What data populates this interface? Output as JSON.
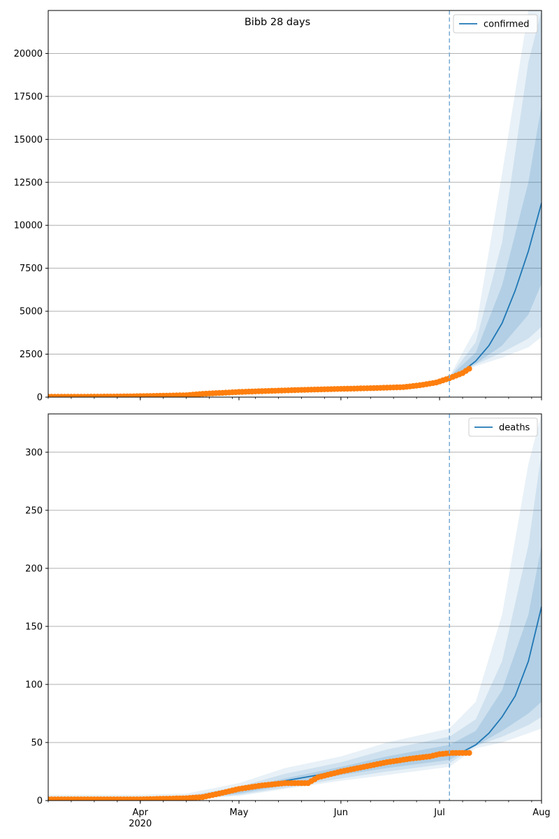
{
  "figure": {
    "title": "Bibb 28 days"
  },
  "colors": {
    "model": "#1f77b4",
    "observed": "#ff7f0e",
    "band": "#1f77b4",
    "vline": "#7fb0d8",
    "grid": "#b0b0b0"
  },
  "x_axis": {
    "ticks": [
      {
        "date": "2020-04-01",
        "label": "Apr",
        "sublabel": "2020"
      },
      {
        "date": "2020-05-01",
        "label": "May",
        "sublabel": ""
      },
      {
        "date": "2020-06-01",
        "label": "Jun",
        "sublabel": ""
      },
      {
        "date": "2020-07-01",
        "label": "Jul",
        "sublabel": ""
      },
      {
        "date": "2020-08-01",
        "label": "Aug",
        "sublabel": ""
      }
    ],
    "range": [
      "2020-03-04",
      "2020-08-01"
    ],
    "forecast_start": "2020-07-04"
  },
  "chart_data": [
    {
      "type": "line",
      "legend": "confirmed",
      "legend_position": "top-right",
      "grid": "y",
      "ylim": [
        0,
        22500
      ],
      "yticks": [
        0,
        2500,
        5000,
        7500,
        10000,
        12500,
        15000,
        17500,
        20000
      ],
      "median": {
        "x": [
          "2020-03-04",
          "2020-03-20",
          "2020-04-01",
          "2020-04-15",
          "2020-04-20",
          "2020-05-01",
          "2020-05-10",
          "2020-05-20",
          "2020-06-01",
          "2020-06-10",
          "2020-06-20",
          "2020-06-25",
          "2020-07-01",
          "2020-07-04",
          "2020-07-08",
          "2020-07-12",
          "2020-07-16",
          "2020-07-20",
          "2020-07-24",
          "2020-07-28",
          "2020-08-01"
        ],
        "y": [
          20,
          40,
          80,
          130,
          210,
          300,
          370,
          420,
          480,
          520,
          580,
          700,
          950,
          1150,
          1500,
          2100,
          3000,
          4300,
          6200,
          8500,
          11300
        ]
      },
      "bands": [
        {
          "x": [
            "2020-07-04",
            "2020-07-12",
            "2020-07-20",
            "2020-07-28",
            "2020-08-01"
          ],
          "lo": [
            1100,
            1800,
            2300,
            2900,
            3500
          ],
          "hi": [
            1200,
            4000,
            13000,
            22500,
            22500
          ]
        },
        {
          "x": [
            "2020-07-04",
            "2020-07-12",
            "2020-07-20",
            "2020-07-28",
            "2020-08-01"
          ],
          "lo": [
            1120,
            1900,
            2600,
            3400,
            4100
          ],
          "hi": [
            1180,
            3200,
            9000,
            19500,
            22500
          ]
        },
        {
          "x": [
            "2020-07-04",
            "2020-07-12",
            "2020-07-20",
            "2020-07-28",
            "2020-08-01"
          ],
          "lo": [
            1140,
            1950,
            3000,
            4800,
            6600
          ],
          "hi": [
            1170,
            2600,
            6500,
            12500,
            17000
          ]
        }
      ],
      "observed": {
        "x": [
          "2020-03-04",
          "2020-03-15",
          "2020-03-25",
          "2020-04-01",
          "2020-04-08",
          "2020-04-15",
          "2020-04-20",
          "2020-04-25",
          "2020-05-01",
          "2020-05-10",
          "2020-05-20",
          "2020-06-01",
          "2020-06-10",
          "2020-06-20",
          "2020-06-25",
          "2020-06-30",
          "2020-07-04",
          "2020-07-08",
          "2020-07-10"
        ],
        "y": [
          20,
          25,
          35,
          55,
          80,
          110,
          190,
          240,
          300,
          360,
          420,
          480,
          520,
          580,
          690,
          850,
          1100,
          1400,
          1650
        ]
      }
    },
    {
      "type": "line",
      "legend": "deaths",
      "legend_position": "top-right",
      "grid": "y",
      "ylim": [
        0,
        333
      ],
      "yticks": [
        0,
        50,
        100,
        150,
        200,
        250,
        300
      ],
      "median": {
        "x": [
          "2020-03-04",
          "2020-04-01",
          "2020-04-15",
          "2020-04-25",
          "2020-05-05",
          "2020-05-15",
          "2020-05-25",
          "2020-06-05",
          "2020-06-15",
          "2020-06-25",
          "2020-07-01",
          "2020-07-04",
          "2020-07-08",
          "2020-07-12",
          "2020-07-16",
          "2020-07-20",
          "2020-07-24",
          "2020-07-28",
          "2020-08-01"
        ],
        "y": [
          1,
          1,
          2,
          5,
          12,
          17,
          22,
          29,
          33,
          37,
          39,
          40,
          42,
          48,
          58,
          72,
          90,
          120,
          167
        ]
      },
      "bands": [
        {
          "x": [
            "2020-03-04",
            "2020-04-01",
            "2020-04-15",
            "2020-05-01",
            "2020-05-15",
            "2020-06-01",
            "2020-06-15",
            "2020-07-04",
            "2020-07-12",
            "2020-07-20",
            "2020-07-28",
            "2020-08-01"
          ],
          "lo": [
            0,
            0,
            1,
            4,
            10,
            17,
            22,
            29,
            45,
            50,
            58,
            62
          ],
          "hi": [
            5,
            5,
            6,
            15,
            28,
            38,
            50,
            62,
            85,
            160,
            290,
            333
          ]
        },
        {
          "x": [
            "2020-03-04",
            "2020-04-01",
            "2020-04-15",
            "2020-05-01",
            "2020-05-15",
            "2020-06-01",
            "2020-06-15",
            "2020-07-04",
            "2020-07-12",
            "2020-07-20",
            "2020-07-28",
            "2020-08-01"
          ],
          "lo": [
            0,
            0,
            1,
            5,
            11,
            19,
            25,
            32,
            47,
            55,
            65,
            72
          ],
          "hi": [
            3,
            3,
            4,
            12,
            23,
            33,
            44,
            55,
            70,
            120,
            220,
            300
          ]
        },
        {
          "x": [
            "2020-03-04",
            "2020-04-01",
            "2020-04-15",
            "2020-05-01",
            "2020-05-15",
            "2020-06-01",
            "2020-06-15",
            "2020-07-04",
            "2020-07-12",
            "2020-07-20",
            "2020-07-28",
            "2020-08-01"
          ],
          "lo": [
            0,
            0,
            1,
            6,
            13,
            22,
            28,
            35,
            47,
            60,
            75,
            85
          ],
          "hi": [
            2,
            2,
            3,
            10,
            19,
            29,
            38,
            48,
            60,
            95,
            160,
            220
          ]
        }
      ],
      "observed": {
        "x": [
          "2020-03-04",
          "2020-04-01",
          "2020-04-15",
          "2020-04-20",
          "2020-04-25",
          "2020-05-01",
          "2020-05-08",
          "2020-05-15",
          "2020-05-22",
          "2020-05-25",
          "2020-06-01",
          "2020-06-08",
          "2020-06-15",
          "2020-06-22",
          "2020-06-28",
          "2020-07-01",
          "2020-07-05",
          "2020-07-10"
        ],
        "y": [
          1,
          1,
          2,
          3,
          6,
          10,
          13,
          15,
          15,
          20,
          25,
          29,
          33,
          36,
          38,
          40,
          41,
          41
        ]
      }
    }
  ]
}
